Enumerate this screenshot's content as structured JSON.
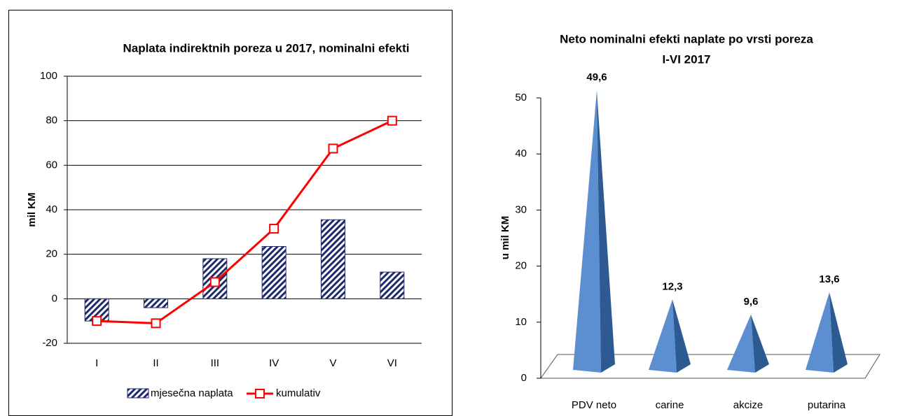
{
  "chart_data": [
    {
      "type": "bar-line",
      "title": "Naplata indirektnih poreza u 2017, nominalni efekti",
      "y_label": "mil KM",
      "categories": [
        "I",
        "II",
        "III",
        "IV",
        "V",
        "VI"
      ],
      "series": [
        {
          "name": "mjesečna naplata",
          "type": "bar",
          "color": "#1f2a6e",
          "values": [
            -10,
            -4,
            18,
            23.5,
            35.5,
            12
          ]
        },
        {
          "name": "kumulativ",
          "type": "line",
          "color": "#ff0000",
          "values": [
            -10,
            -11,
            7.5,
            31.5,
            67.5,
            80
          ]
        }
      ],
      "ylim": [
        -20,
        100
      ],
      "yticks": [
        -20,
        0,
        20,
        40,
        60,
        80,
        100
      ],
      "grid": true,
      "legend": "bottom"
    },
    {
      "type": "pyramid",
      "title_lines": [
        "Neto nominalni  efekti naplate po vrsti poreza",
        "I-VI 2017"
      ],
      "y_label": "u mil KM",
      "categories": [
        "PDV neto",
        "carine",
        "akcize",
        "putarina"
      ],
      "values": [
        49.6,
        12.3,
        9.6,
        13.6
      ],
      "value_labels": [
        "49,6",
        "12,3",
        "9,6",
        "13,6"
      ],
      "color": "#5b8fd0",
      "ylim": [
        0,
        50
      ],
      "yticks": [
        0,
        10,
        20,
        30,
        40,
        50
      ]
    }
  ]
}
